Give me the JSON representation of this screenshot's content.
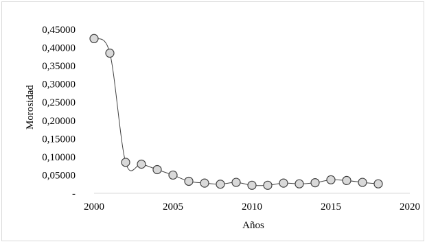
{
  "chart_data": {
    "type": "scatter",
    "xlabel": "Años",
    "ylabel": "Morosidad",
    "xlim": [
      2000,
      2020
    ],
    "ylim": [
      0,
      0.45
    ],
    "x_ticks": [
      2000,
      2005,
      2010,
      2015,
      2020
    ],
    "x_tick_labels": [
      "2000",
      "2005",
      "2010",
      "2015",
      "2020"
    ],
    "y_ticks": [
      0,
      0.05,
      0.1,
      0.15,
      0.2,
      0.25,
      0.3,
      0.35,
      0.4,
      0.45
    ],
    "y_tick_labels": [
      "-",
      "0,05000",
      "0,10000",
      "0,15000",
      "0,20000",
      "0,25000",
      "0,30000",
      "0,35000",
      "0,40000",
      "0,45000"
    ],
    "grid": false,
    "smooth_line": true,
    "colors": {
      "marker_fill": "#d9d9d9",
      "marker_stroke": "#404040",
      "line": "#404040",
      "axis": "#d9d9d9"
    },
    "series": [
      {
        "x": [
          2000,
          2001,
          2002,
          2003,
          2004,
          2005,
          2006,
          2007,
          2008,
          2009,
          2010,
          2011,
          2012,
          2013,
          2014,
          2015,
          2016,
          2017,
          2018
        ],
        "y": [
          0.425,
          0.385,
          0.085,
          0.08,
          0.065,
          0.05,
          0.033,
          0.028,
          0.025,
          0.03,
          0.022,
          0.022,
          0.028,
          0.026,
          0.029,
          0.037,
          0.035,
          0.03,
          0.026
        ]
      }
    ]
  }
}
